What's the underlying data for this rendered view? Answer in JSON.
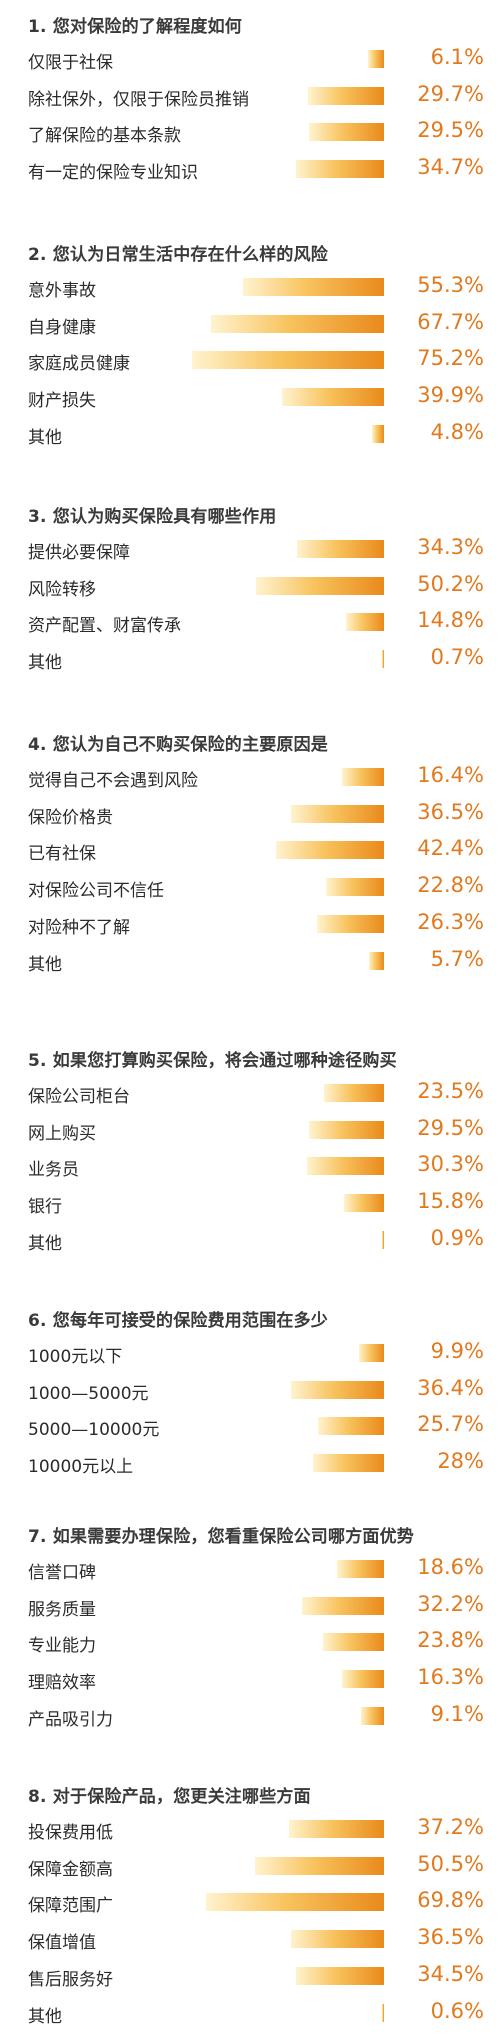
{
  "colors": {
    "accent": "#e07a1f",
    "bar_start": "#fff3cf",
    "bar_mid": "#f8c35e",
    "bar_end": "#e98a1b",
    "title": "#3a3a3a",
    "label": "#2b2b2b"
  },
  "chart_data": [
    {
      "type": "bar",
      "orientation": "horizontal",
      "title": "1. 您对保险的了解程度如何",
      "categories": [
        "仅限于社保",
        "除社保外，仅限于保险员推销",
        "了解保险的基本条款",
        "有一定的保险专业知识"
      ],
      "values": [
        6.1,
        29.7,
        29.5,
        34.7
      ],
      "value_labels": [
        "6.1%",
        "29.7%",
        "29.5%",
        "34.7%"
      ],
      "unit": "%"
    },
    {
      "type": "bar",
      "orientation": "horizontal",
      "title": "2. 您认为日常生活中存在什么样的风险",
      "categories": [
        "意外事故",
        "自身健康",
        "家庭成员健康",
        "财产损失",
        "其他"
      ],
      "values": [
        55.3,
        67.7,
        75.2,
        39.9,
        4.8
      ],
      "value_labels": [
        "55.3%",
        "67.7%",
        "75.2%",
        "39.9%",
        "4.8%"
      ],
      "unit": "%"
    },
    {
      "type": "bar",
      "orientation": "horizontal",
      "title": "3. 您认为购买保险具有哪些作用",
      "categories": [
        "提供必要保障",
        "风险转移",
        "资产配置、财富传承",
        "其他"
      ],
      "values": [
        34.3,
        50.2,
        14.8,
        0.7
      ],
      "value_labels": [
        "34.3%",
        "50.2%",
        "14.8%",
        "0.7%"
      ],
      "unit": "%"
    },
    {
      "type": "bar",
      "orientation": "horizontal",
      "title": "4. 您认为自己不购买保险的主要原因是",
      "categories": [
        "觉得自己不会遇到风险",
        "保险价格贵",
        "已有社保",
        "对保险公司不信任",
        "对险种不了解",
        "其他"
      ],
      "values": [
        16.4,
        36.5,
        42.4,
        22.8,
        26.3,
        5.7
      ],
      "value_labels": [
        "16.4%",
        "36.5%",
        "42.4%",
        "22.8%",
        "26.3%",
        "5.7%"
      ],
      "unit": "%"
    },
    {
      "type": "bar",
      "orientation": "horizontal",
      "title": "5. 如果您打算购买保险，将会通过哪种途径购买",
      "categories": [
        "保险公司柜台",
        "网上购买",
        "业务员",
        "银行",
        "其他"
      ],
      "values": [
        23.5,
        29.5,
        30.3,
        15.8,
        0.9
      ],
      "value_labels": [
        "23.5%",
        "29.5%",
        "30.3%",
        "15.8%",
        "0.9%"
      ],
      "unit": "%"
    },
    {
      "type": "bar",
      "orientation": "horizontal",
      "title": "6. 您每年可接受的保险费用范围在多少",
      "categories": [
        "1000元以下",
        "1000—5000元",
        "5000—10000元",
        "10000元以上"
      ],
      "values": [
        9.9,
        36.4,
        25.7,
        28
      ],
      "value_labels": [
        "9.9%",
        "36.4%",
        "25.7%",
        "28%"
      ],
      "unit": "%"
    },
    {
      "type": "bar",
      "orientation": "horizontal",
      "title": "7. 如果需要办理保险，您看重保险公司哪方面优势",
      "categories": [
        "信誉口碑",
        "服务质量",
        "专业能力",
        "理赔效率",
        "产品吸引力"
      ],
      "values": [
        18.6,
        32.2,
        23.8,
        16.3,
        9.1
      ],
      "value_labels": [
        "18.6%",
        "32.2%",
        "23.8%",
        "16.3%",
        "9.1%"
      ],
      "unit": "%"
    },
    {
      "type": "bar",
      "orientation": "horizontal",
      "title": "8. 对于保险产品，您更关注哪些方面",
      "categories": [
        "投保费用低",
        "保障金额高",
        "保障范围广",
        "保值增值",
        "售后服务好",
        "其他"
      ],
      "values": [
        37.2,
        50.5,
        69.8,
        36.5,
        34.5,
        0.6
      ],
      "value_labels": [
        "37.2%",
        "50.5%",
        "69.8%",
        "36.5%",
        "34.5%",
        "0.6%"
      ],
      "unit": "%"
    }
  ]
}
